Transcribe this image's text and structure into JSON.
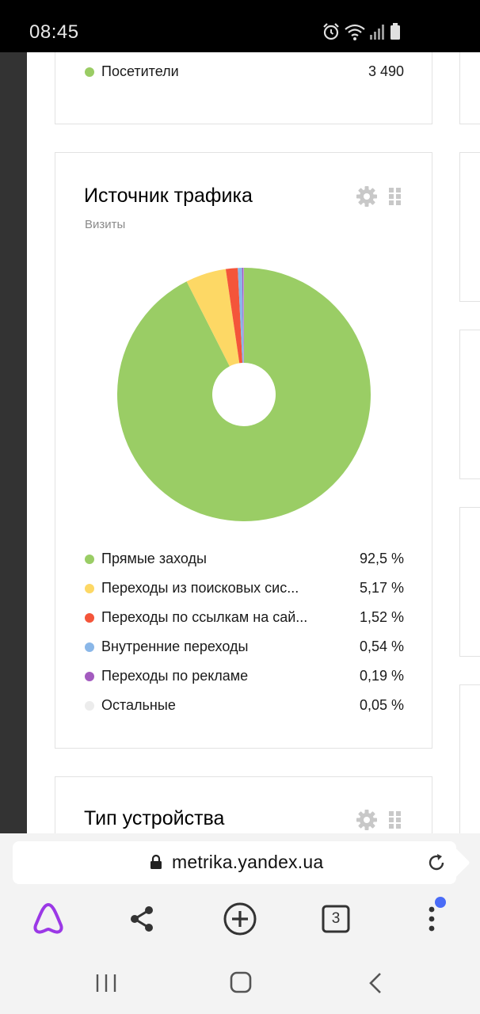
{
  "status_bar": {
    "time": "08:45",
    "icons": [
      "alarm-icon",
      "wifi-icon",
      "signal-icon",
      "battery-icon"
    ]
  },
  "cards": {
    "visitors": {
      "label": "Посетители",
      "value": "3 490",
      "color": "#9acc64"
    },
    "traffic": {
      "title": "Источник трафика",
      "subtitle": "Визиты",
      "icons": [
        "gear-icon",
        "drag-handle-icon"
      ]
    },
    "device": {
      "title": "Тип устройства",
      "icons": [
        "gear-icon",
        "drag-handle-icon"
      ]
    }
  },
  "chart_data": {
    "type": "pie",
    "donut": true,
    "slices": [
      {
        "label": "Прямые заходы",
        "value": 92.5,
        "display": "92,5 %",
        "color": "#9acd65"
      },
      {
        "label": "Переходы из поисковых сис...",
        "value": 5.17,
        "display": "5,17 %",
        "color": "#fdd865"
      },
      {
        "label": "Переходы по ссылкам на сай...",
        "value": 1.52,
        "display": "1,52 %",
        "color": "#f4553a"
      },
      {
        "label": "Внутренние переходы",
        "value": 0.54,
        "display": "0,54 %",
        "color": "#8ab7e8"
      },
      {
        "label": "Переходы по рекламе",
        "value": 0.19,
        "display": "0,19 %",
        "color": "#a35bbf"
      },
      {
        "label": "Остальные",
        "value": 0.05,
        "display": "0,05 %",
        "color": "#ececec"
      }
    ]
  },
  "browser": {
    "url": "metrika.yandex.ua",
    "tab_count": "3",
    "toolbar_icons": [
      "alice-icon",
      "share-icon",
      "new-tab-icon",
      "tabs-icon",
      "menu-icon"
    ],
    "accent_color": "#9b38e6",
    "notification_dot_color": "#4a6cf7"
  },
  "system_nav": {
    "icons": [
      "recents-icon",
      "home-icon",
      "back-icon"
    ]
  }
}
